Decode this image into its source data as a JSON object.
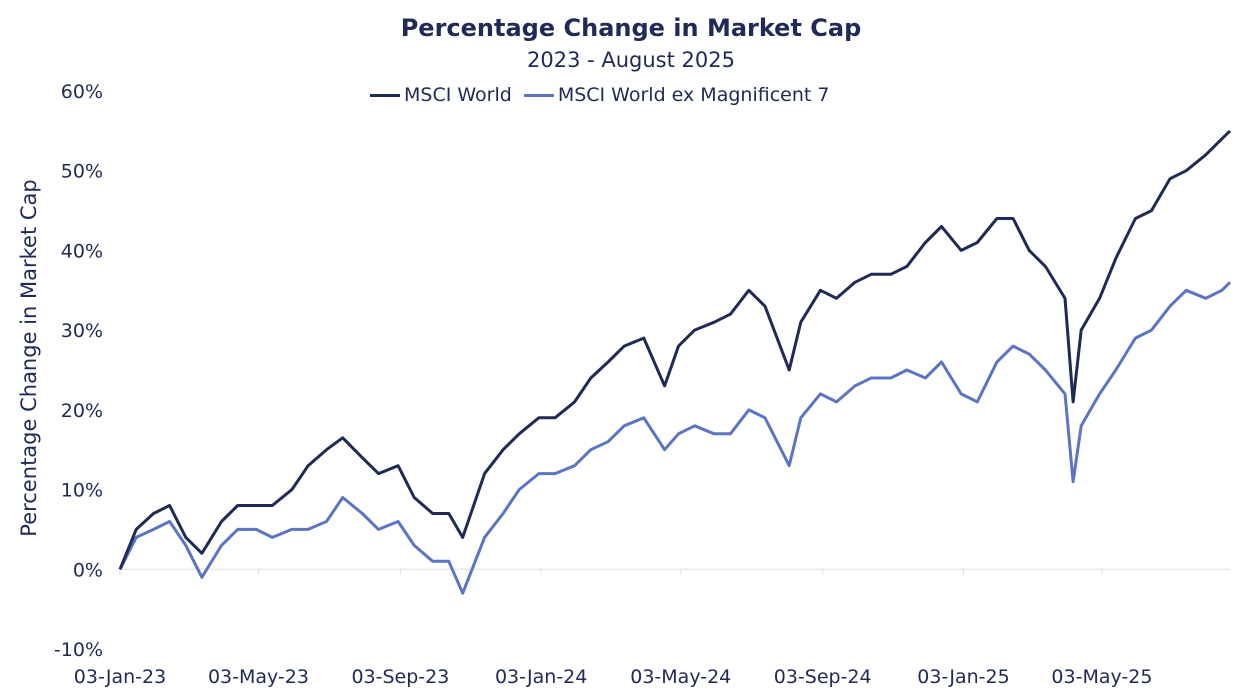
{
  "chart_data": {
    "type": "line",
    "title": "Percentage Change in Market Cap",
    "subtitle": "2023 - August 2025",
    "xlabel": "",
    "ylabel": "Percentage Change in Market Cap",
    "ylim": [
      -10,
      60
    ],
    "yticks": [
      "60%",
      "50%",
      "40%",
      "30%",
      "20%",
      "10%",
      "0%",
      "-10%"
    ],
    "ytick_values": [
      60,
      50,
      40,
      30,
      20,
      10,
      0,
      -10
    ],
    "xticks": [
      "03-Jan-23",
      "03-May-23",
      "03-Sep-23",
      "03-Jan-24",
      "03-May-24",
      "03-Sep-24",
      "03-Jan-25",
      "03-May-25"
    ],
    "x": [
      "03-Jan-23",
      "17-Jan-23",
      "01-Feb-23",
      "15-Feb-23",
      "01-Mar-23",
      "15-Mar-23",
      "01-Apr-23",
      "15-Apr-23",
      "01-May-23",
      "15-May-23",
      "01-Jun-23",
      "15-Jun-23",
      "01-Jul-23",
      "15-Jul-23",
      "01-Aug-23",
      "15-Aug-23",
      "01-Sep-23",
      "15-Sep-23",
      "01-Oct-23",
      "15-Oct-23",
      "27-Oct-23",
      "15-Nov-23",
      "01-Dec-23",
      "15-Dec-23",
      "01-Jan-24",
      "15-Jan-24",
      "01-Feb-24",
      "15-Feb-24",
      "01-Mar-24",
      "15-Mar-24",
      "01-Apr-24",
      "19-Apr-24",
      "01-May-24",
      "15-May-24",
      "01-Jun-24",
      "15-Jun-24",
      "01-Jul-24",
      "15-Jul-24",
      "05-Aug-24",
      "15-Aug-24",
      "01-Sep-24",
      "15-Sep-24",
      "01-Oct-24",
      "15-Oct-24",
      "01-Nov-24",
      "15-Nov-24",
      "01-Dec-24",
      "15-Dec-24",
      "01-Jan-25",
      "15-Jan-25",
      "01-Feb-25",
      "15-Feb-25",
      "01-Mar-25",
      "15-Mar-25",
      "01-Apr-25",
      "08-Apr-25",
      "15-Apr-25",
      "01-May-25",
      "15-May-25",
      "01-Jun-25",
      "15-Jun-25",
      "01-Jul-25",
      "15-Jul-25",
      "01-Aug-25",
      "15-Aug-25",
      "22-Aug-25"
    ],
    "series": [
      {
        "name": "MSCI World",
        "color": "#1f2a56",
        "values": [
          0,
          5,
          7,
          8,
          4,
          2,
          6,
          8,
          8,
          8,
          10,
          13,
          15,
          16.5,
          14,
          12,
          13,
          9,
          7,
          7,
          4,
          12,
          15,
          17,
          19,
          19,
          21,
          24,
          26,
          28,
          29,
          23,
          28,
          30,
          31,
          32,
          35,
          33,
          25,
          31,
          35,
          34,
          36,
          37,
          37,
          38,
          41,
          43,
          40,
          41,
          44,
          44,
          40,
          38,
          34,
          21,
          30,
          34,
          39,
          44,
          45,
          49,
          50,
          52,
          54,
          55
        ]
      },
      {
        "name": "MSCI World ex Magnificent 7",
        "color": "#5b75c4",
        "values": [
          0,
          4,
          5,
          6,
          3,
          -1,
          3,
          5,
          5,
          4,
          5,
          5,
          6,
          9,
          7,
          5,
          6,
          3,
          1,
          1,
          -3,
          4,
          7,
          10,
          12,
          12,
          13,
          15,
          16,
          18,
          19,
          15,
          17,
          18,
          17,
          17,
          20,
          19,
          13,
          19,
          22,
          21,
          23,
          24,
          24,
          25,
          24,
          26,
          22,
          21,
          26,
          28,
          27,
          25,
          22,
          11,
          18,
          22,
          25,
          29,
          30,
          33,
          35,
          34,
          35,
          36
        ]
      }
    ],
    "grid": false,
    "legend_position": "top-center"
  }
}
